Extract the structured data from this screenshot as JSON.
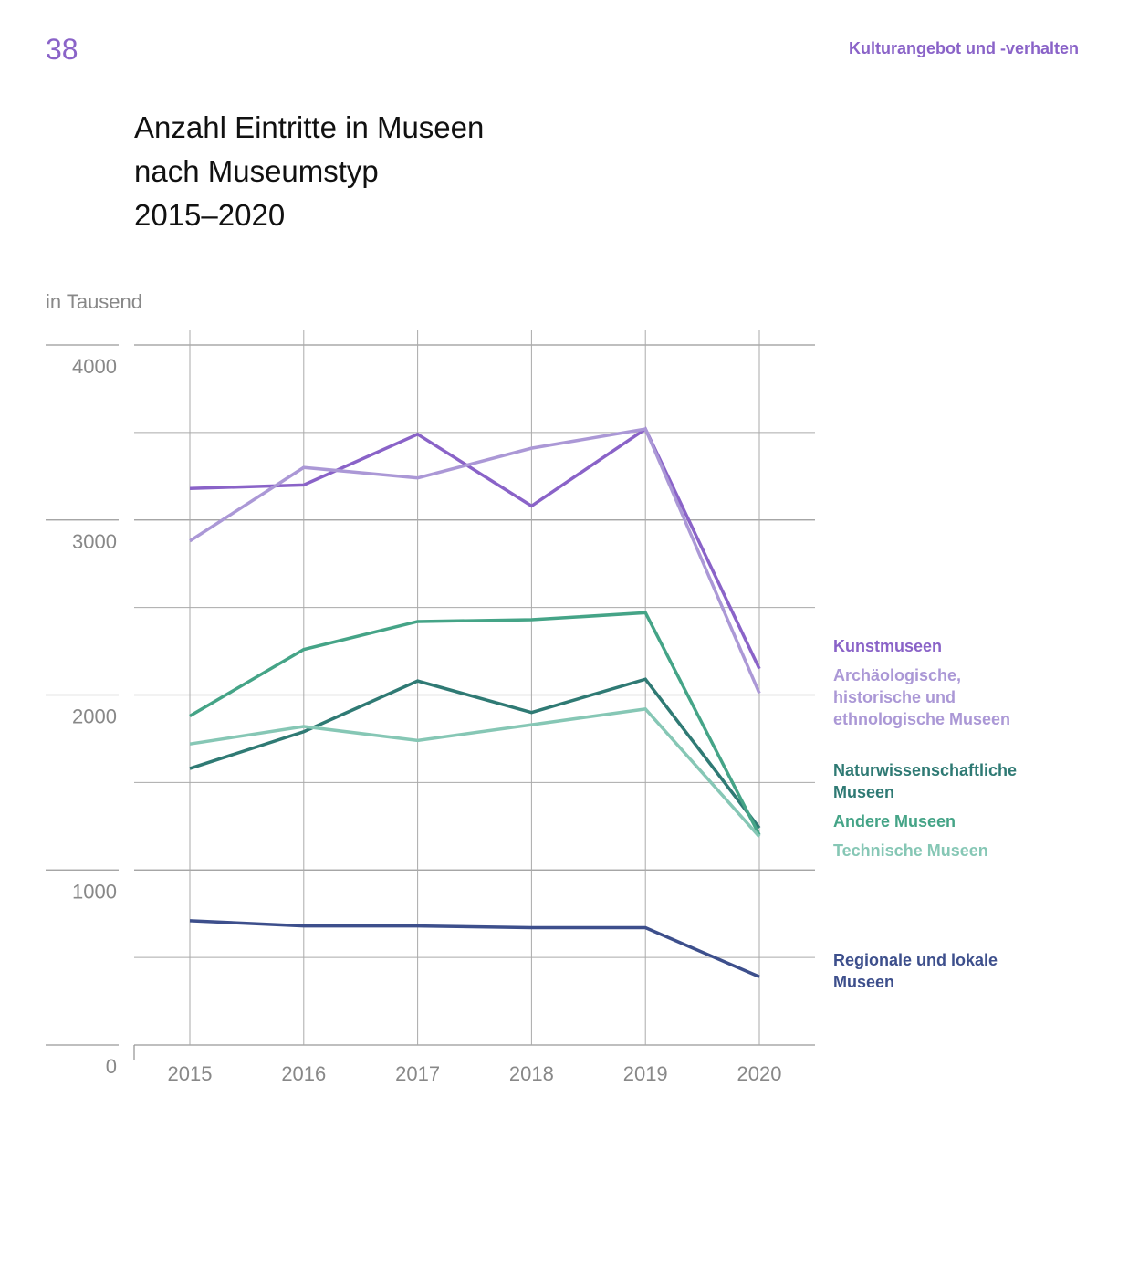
{
  "header": {
    "page_number": "38",
    "section": "Kulturangebot und -verhalten"
  },
  "chart_data": {
    "type": "line",
    "title": [
      "Anzahl Eintritte in Museen",
      "nach Museumstyp",
      "2015–2020"
    ],
    "ylabel": "in Tausend",
    "xlabel": "",
    "x": [
      "2015",
      "2016",
      "2017",
      "2018",
      "2019",
      "2020"
    ],
    "ylim": [
      0,
      4000
    ],
    "yticks": [
      "0",
      "1000",
      "2000",
      "3000",
      "4000"
    ],
    "grid": true,
    "legend_placement": "right",
    "series": [
      {
        "name": "Kunstmuseen",
        "color": "#8a63c8",
        "values": [
          3180,
          3200,
          3490,
          3080,
          3520,
          2150
        ]
      },
      {
        "name": "Archäologische, historische und ethnologische Museen",
        "color": "#ab98d6",
        "values": [
          2880,
          3300,
          3240,
          3410,
          3520,
          2010
        ]
      },
      {
        "name": "Naturwissenschaftliche Museen",
        "color": "#2f7a74",
        "values": [
          1580,
          1790,
          2080,
          1900,
          2090,
          1240
        ]
      },
      {
        "name": "Andere Museen",
        "color": "#45a487",
        "values": [
          1880,
          2260,
          2420,
          2430,
          2470,
          1200
        ]
      },
      {
        "name": "Technische Museen",
        "color": "#86c7b5",
        "values": [
          1720,
          1820,
          1740,
          1830,
          1920,
          1190
        ]
      },
      {
        "name": "Regionale und lokale Museen",
        "color": "#3d4f8c",
        "values": [
          710,
          680,
          680,
          670,
          670,
          390
        ]
      }
    ],
    "legend_lines": [
      [
        "Kunstmuseen"
      ],
      [
        "Archäologische,",
        "historische und",
        "ethnologische Museen"
      ],
      [
        "Naturwissenschaftliche",
        "Museen"
      ],
      [
        "Andere Museen"
      ],
      [
        "Technische Museen"
      ],
      [
        "Regionale und lokale",
        "Museen"
      ]
    ]
  }
}
